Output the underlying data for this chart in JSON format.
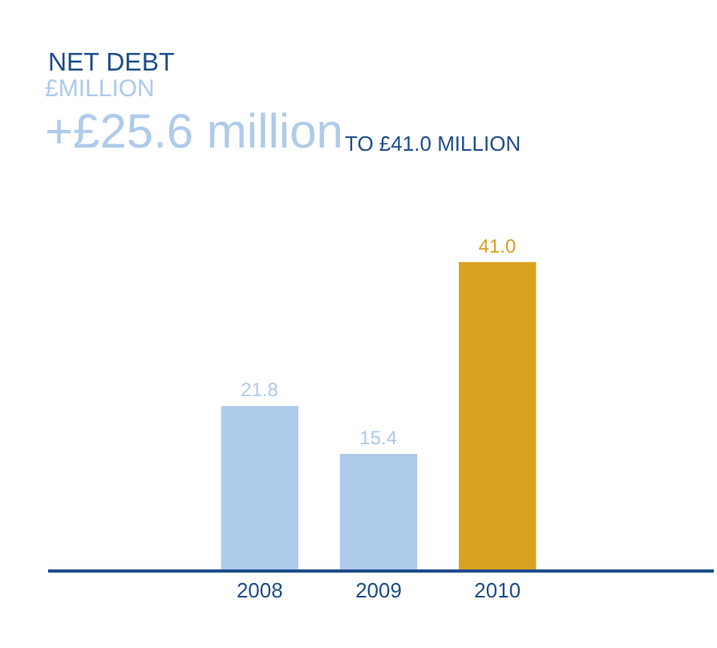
{
  "chart_data": {
    "type": "bar",
    "title": "NET DEBT",
    "subtitle": "£MILLION",
    "annotations": [
      "+£25.6 million",
      "TO £41.0 MILLION"
    ],
    "categories": [
      "2008",
      "2009",
      "2010"
    ],
    "values": [
      21.8,
      15.4,
      41.0
    ],
    "colors": [
      "#aecbeb",
      "#aecbeb",
      "#d9a21f"
    ],
    "value_labels": [
      "21.8",
      "15.4",
      "41.0"
    ],
    "legend": false
  }
}
